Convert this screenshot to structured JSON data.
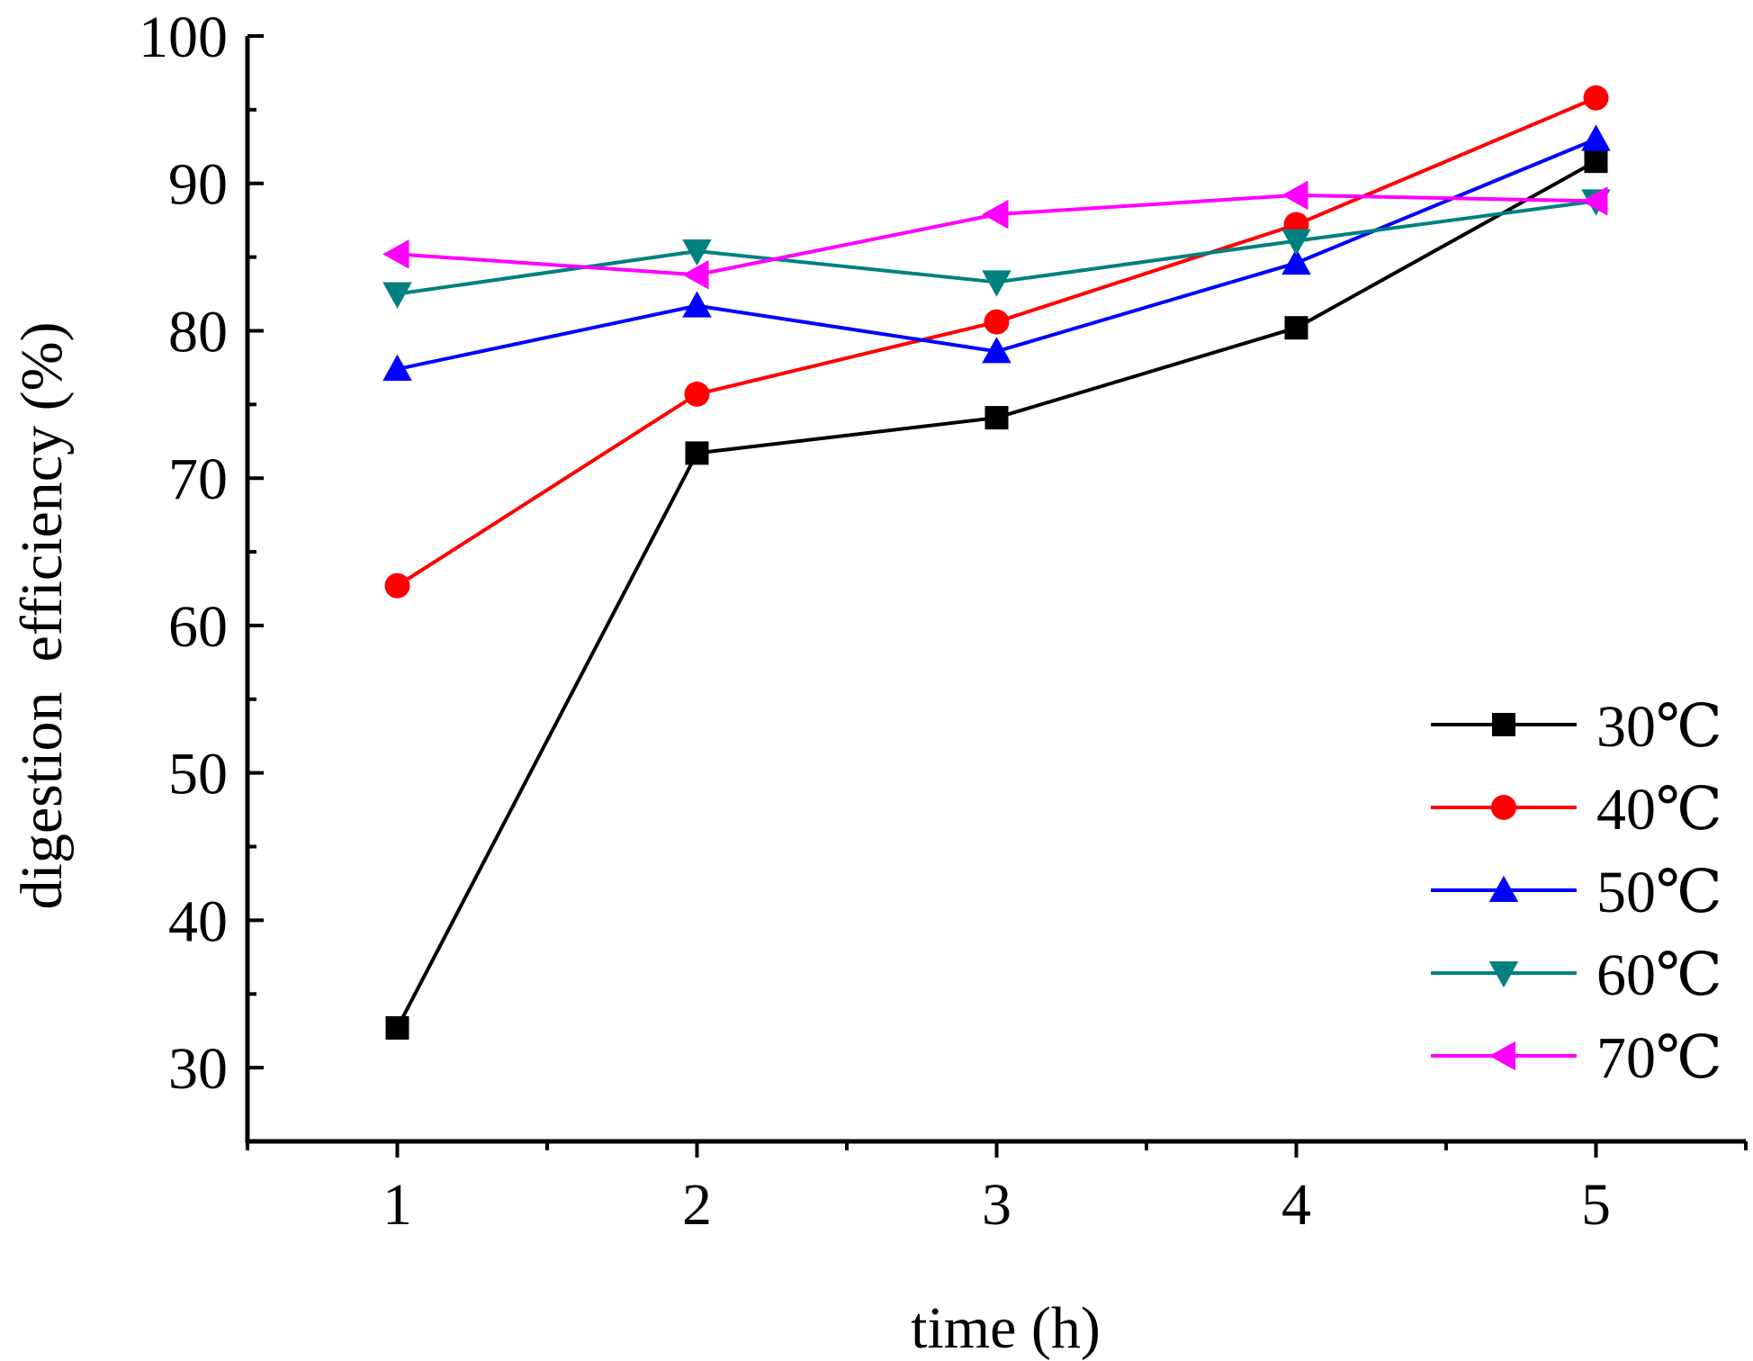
{
  "chart_data": {
    "type": "line",
    "title": "",
    "xlabel": "time (h)",
    "ylabel": "digestion  efficiency (%)",
    "x": [
      1,
      2,
      3,
      4,
      5
    ],
    "x_ticks": [
      "1",
      "2",
      "3",
      "4",
      "5"
    ],
    "xlim": [
      0.5,
      5.5
    ],
    "ylim": [
      25,
      100
    ],
    "y_ticks": [
      "30",
      "40",
      "50",
      "60",
      "70",
      "80",
      "90",
      "100"
    ],
    "grid": false,
    "legend_position": "bottom-right",
    "series": [
      {
        "name": "30℃",
        "values": [
          32.7,
          71.7,
          74.1,
          80.2,
          91.5
        ],
        "color": "#000000",
        "marker": "square"
      },
      {
        "name": "40℃",
        "values": [
          62.7,
          75.7,
          80.6,
          87.2,
          95.8
        ],
        "color": "#ff0000",
        "marker": "circle"
      },
      {
        "name": "50℃",
        "values": [
          77.4,
          81.7,
          78.6,
          84.6,
          93.0
        ],
        "color": "#0000ff",
        "marker": "triangle-up"
      },
      {
        "name": "60℃",
        "values": [
          82.5,
          85.4,
          83.3,
          86.1,
          88.8
        ],
        "color": "#008080",
        "marker": "triangle-down"
      },
      {
        "name": "70℃",
        "values": [
          85.2,
          83.8,
          87.9,
          89.2,
          88.8
        ],
        "color": "#ff00ff",
        "marker": "triangle-left"
      }
    ]
  }
}
